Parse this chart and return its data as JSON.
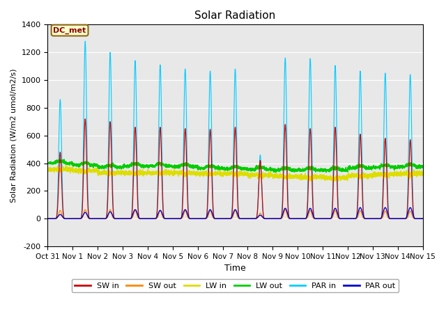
{
  "title": "Solar Radiation",
  "ylabel": "Solar Radiation (W/m2 umol/m2/s)",
  "xlabel": "Time",
  "ylim": [
    -200,
    1400
  ],
  "xlim_days": [
    0,
    15
  ],
  "annotation": "DC_met",
  "plot_bg_color": "#e8e8e8",
  "fig_bg_color": "#ffffff",
  "series": {
    "SW_in": {
      "color": "#cc0000",
      "label": "SW in"
    },
    "SW_out": {
      "color": "#ff8800",
      "label": "SW out"
    },
    "LW_in": {
      "color": "#dddd00",
      "label": "LW in"
    },
    "LW_out": {
      "color": "#00cc00",
      "label": "LW out"
    },
    "PAR_in": {
      "color": "#00ccff",
      "label": "PAR in"
    },
    "PAR_out": {
      "color": "#0000cc",
      "label": "PAR out"
    }
  },
  "xtick_labels": [
    "Oct 31",
    "Nov 1",
    "Nov 2",
    "Nov 3",
    "Nov 4",
    "Nov 5",
    "Nov 6",
    "Nov 7",
    "Nov 8",
    "Nov 9",
    "Nov 10",
    "Nov 11",
    "Nov 12",
    "Nov 13",
    "Nov 14",
    "Nov 15"
  ],
  "ytick_labels": [
    -200,
    0,
    200,
    400,
    600,
    800,
    1000,
    1200,
    1400
  ],
  "legend_ncol": 6,
  "sw_in_peaks": [
    480,
    720,
    700,
    660,
    660,
    650,
    645,
    660,
    420,
    680,
    650,
    660,
    610,
    580,
    570
  ],
  "sw_out_peaks": [
    60,
    65,
    65,
    60,
    60,
    58,
    58,
    60,
    40,
    65,
    60,
    60,
    58,
    55,
    55
  ],
  "lw_in_base": [
    355,
    345,
    330,
    330,
    330,
    330,
    325,
    325,
    315,
    305,
    300,
    295,
    310,
    320,
    325
  ],
  "lw_out_base": [
    400,
    385,
    370,
    380,
    380,
    375,
    365,
    360,
    355,
    350,
    350,
    350,
    365,
    370,
    375
  ],
  "par_in_peaks": [
    860,
    1280,
    1200,
    1140,
    1110,
    1080,
    1065,
    1080,
    460,
    1160,
    1155,
    1105,
    1065,
    1050,
    1040
  ],
  "par_out_peaks": [
    30,
    45,
    50,
    65,
    60,
    65,
    65,
    65,
    25,
    75,
    75,
    75,
    80,
    80,
    80
  ]
}
